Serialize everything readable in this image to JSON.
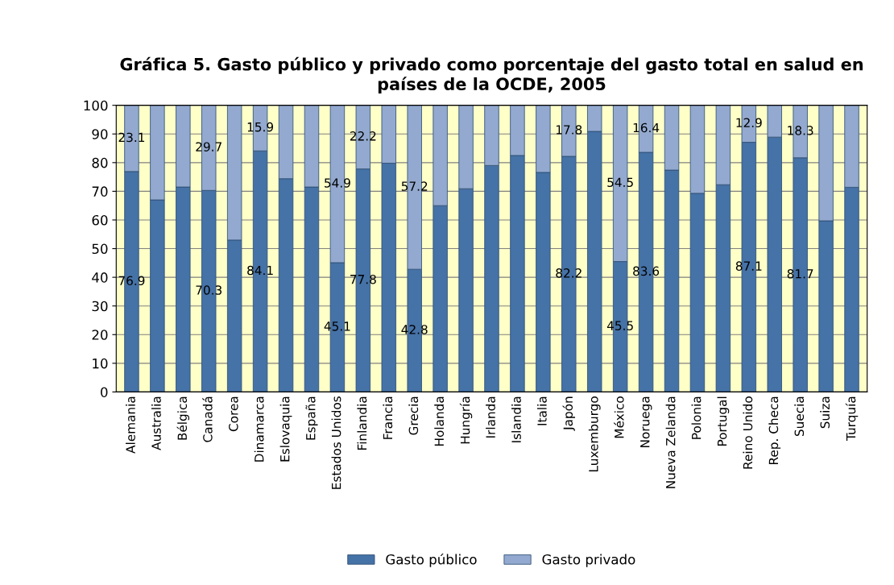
{
  "chart_data": {
    "type": "bar",
    "title": "Gráfica 5. Gasto público y privado como porcentaje del gasto total en salud en países de la OCDE, 2005",
    "categories": [
      "Alemania",
      "Australia",
      "Bélgica",
      "Canadá",
      "Corea",
      "Dinamarca",
      "Eslovaquia",
      "España",
      "Estados Unidos",
      "Finlandia",
      "Francia",
      "Grecia",
      "Holanda",
      "Hungría",
      "Irlanda",
      "Islandia",
      "Italia",
      "Japón",
      "Luxemburgo",
      "México",
      "Noruega",
      "Nueva Zelanda",
      "Polonia",
      "Portugal",
      "Reino Unido",
      "Rep. Checa",
      "Suecia",
      "Suiza",
      "Turquía"
    ],
    "stacked": true,
    "series": [
      {
        "name": "Gasto público",
        "color": "#4572a7",
        "values": [
          76.9,
          67,
          71.5,
          70.3,
          53,
          84.1,
          74.4,
          71.5,
          45.1,
          77.8,
          79.8,
          42.8,
          65,
          70.9,
          79,
          82.5,
          76.6,
          82.2,
          90.9,
          45.5,
          83.6,
          77.4,
          69.3,
          72.3,
          87.1,
          88.9,
          81.7,
          59.7,
          71.4
        ],
        "value_labels": [
          "76.9",
          null,
          null,
          "70.3",
          null,
          "84.1",
          null,
          null,
          "45.1",
          "77.8",
          null,
          "42.8",
          null,
          null,
          null,
          null,
          null,
          "82.2",
          null,
          "45.5",
          "83.6",
          null,
          null,
          null,
          "87.1",
          null,
          "81.7",
          null,
          null
        ]
      },
      {
        "name": "Gasto privado",
        "color": "#93a9cf",
        "values": [
          23.1,
          33,
          28.5,
          29.7,
          47,
          15.9,
          25.6,
          28.5,
          54.9,
          22.2,
          20.2,
          57.2,
          35,
          29.1,
          21,
          17.5,
          23.4,
          17.8,
          9.1,
          54.5,
          16.4,
          22.6,
          30.7,
          27.7,
          12.9,
          11.1,
          18.3,
          40.3,
          28.6
        ],
        "value_labels": [
          "23.1",
          null,
          null,
          "29.7",
          null,
          "15.9",
          null,
          null,
          "54.9",
          "22.2",
          null,
          "57.2",
          null,
          null,
          null,
          null,
          null,
          "17.8",
          null,
          "54.5",
          "16.4",
          null,
          null,
          null,
          "12.9",
          null,
          "18.3",
          null,
          null
        ]
      }
    ],
    "ylim": [
      0,
      100
    ],
    "yticks": [
      0,
      10,
      20,
      30,
      40,
      50,
      60,
      70,
      80,
      90,
      100
    ],
    "grid": "y",
    "legend": "bottom"
  }
}
